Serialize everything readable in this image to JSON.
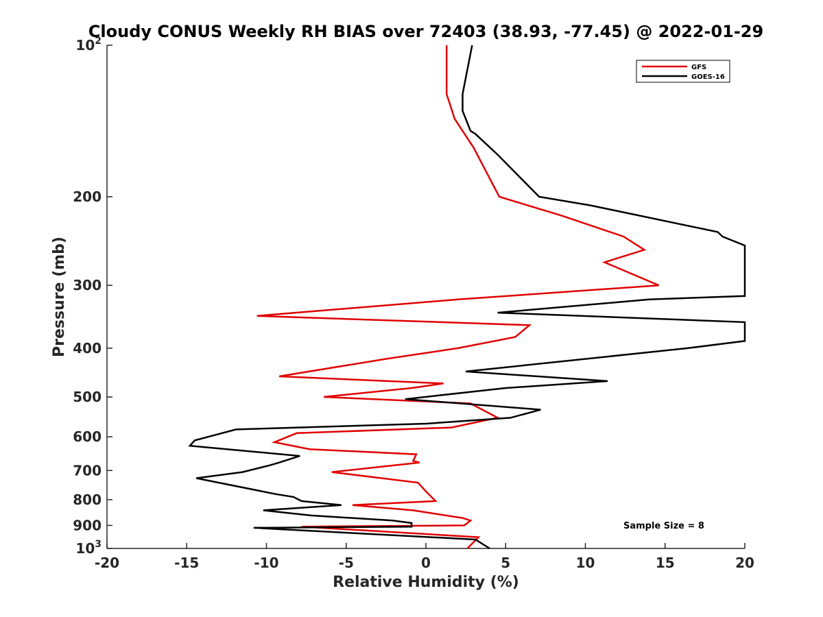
{
  "chart_data": {
    "type": "line",
    "title": "Cloudy CONUS Weekly RH BIAS over 72403 (38.93, -77.45) @ 2022-01-29",
    "xlabel": "Relative Humidity (%)",
    "ylabel": "Pressure (mb)",
    "xlim": [
      -20,
      20
    ],
    "ylim": [
      100,
      1000
    ],
    "yscale": "log",
    "yreversed": true,
    "x_ticks": [
      "-20",
      "-15",
      "-10",
      "-5",
      "0",
      "5",
      "10",
      "15",
      "20"
    ],
    "y_ticks": [
      {
        "value": 100,
        "base": "10",
        "exp": "2"
      },
      {
        "value": 200,
        "label": "200"
      },
      {
        "value": 300,
        "label": "300"
      },
      {
        "value": 400,
        "label": "400"
      },
      {
        "value": 500,
        "label": "500"
      },
      {
        "value": 600,
        "label": "600"
      },
      {
        "value": 700,
        "label": "700"
      },
      {
        "value": 800,
        "label": "800"
      },
      {
        "value": 900,
        "label": "900"
      },
      {
        "value": 1000,
        "base": "10",
        "exp": "3"
      }
    ],
    "legend_position": "top-right",
    "annotation": "Sample Size = 8",
    "series": [
      {
        "name": "GFS",
        "color": "#e00000",
        "points": [
          [
            1.3,
            100
          ],
          [
            1.3,
            125
          ],
          [
            1.8,
            140
          ],
          [
            3.0,
            160
          ],
          [
            4.6,
            200
          ],
          [
            8.5,
            218
          ],
          [
            12.4,
            240
          ],
          [
            13.7,
            255
          ],
          [
            11.2,
            270
          ],
          [
            14.6,
            300
          ],
          [
            2.0,
            320
          ],
          [
            -10.6,
            345
          ],
          [
            6.5,
            360
          ],
          [
            5.6,
            380
          ],
          [
            2.0,
            400
          ],
          [
            -2.5,
            420
          ],
          [
            -9.2,
            455
          ],
          [
            1.1,
            470
          ],
          [
            -0.9,
            480
          ],
          [
            -6.4,
            500
          ],
          [
            2.8,
            515
          ],
          [
            4.5,
            550
          ],
          [
            1.6,
            575
          ],
          [
            -8.1,
            590
          ],
          [
            -9.5,
            615
          ],
          [
            -7.3,
            635
          ],
          [
            -0.6,
            650
          ],
          [
            -0.8,
            670
          ],
          [
            -0.4,
            675
          ],
          [
            -5.9,
            705
          ],
          [
            -0.5,
            740
          ],
          [
            0.0,
            770
          ],
          [
            0.6,
            805
          ],
          [
            -4.6,
            820
          ],
          [
            -0.8,
            840
          ],
          [
            2.3,
            870
          ],
          [
            2.8,
            880
          ],
          [
            2.4,
            900
          ],
          [
            -7.8,
            905
          ],
          [
            3.3,
            950
          ],
          [
            2.6,
            1000
          ]
        ]
      },
      {
        "name": "GOES-16",
        "color": "#000000",
        "points": [
          [
            2.9,
            100
          ],
          [
            2.3,
            125
          ],
          [
            2.3,
            135
          ],
          [
            2.8,
            148
          ],
          [
            3.1,
            150
          ],
          [
            4.5,
            165
          ],
          [
            7.1,
            200
          ],
          [
            10.3,
            208
          ],
          [
            18.3,
            235
          ],
          [
            18.6,
            240
          ],
          [
            20.0,
            250
          ],
          [
            20.0,
            315
          ],
          [
            14.0,
            320
          ],
          [
            4.5,
            340
          ],
          [
            20.0,
            355
          ],
          [
            20.0,
            387
          ],
          [
            16.4,
            400
          ],
          [
            2.5,
            445
          ],
          [
            11.4,
            465
          ],
          [
            5.0,
            480
          ],
          [
            -1.3,
            505
          ],
          [
            7.2,
            530
          ],
          [
            5.3,
            550
          ],
          [
            0.0,
            565
          ],
          [
            -11.9,
            580
          ],
          [
            -14.5,
            610
          ],
          [
            -14.8,
            625
          ],
          [
            -7.9,
            655
          ],
          [
            -9.2,
            675
          ],
          [
            -9.9,
            685
          ],
          [
            -11.5,
            705
          ],
          [
            -14.4,
            725
          ],
          [
            -9.4,
            780
          ],
          [
            -8.3,
            790
          ],
          [
            -7.8,
            805
          ],
          [
            -5.3,
            820
          ],
          [
            -10.2,
            840
          ],
          [
            -7.2,
            860
          ],
          [
            -2.1,
            880
          ],
          [
            -0.9,
            890
          ],
          [
            -0.9,
            905
          ],
          [
            -10.8,
            910
          ],
          [
            3.1,
            960
          ],
          [
            4.0,
            1000
          ]
        ]
      }
    ]
  }
}
